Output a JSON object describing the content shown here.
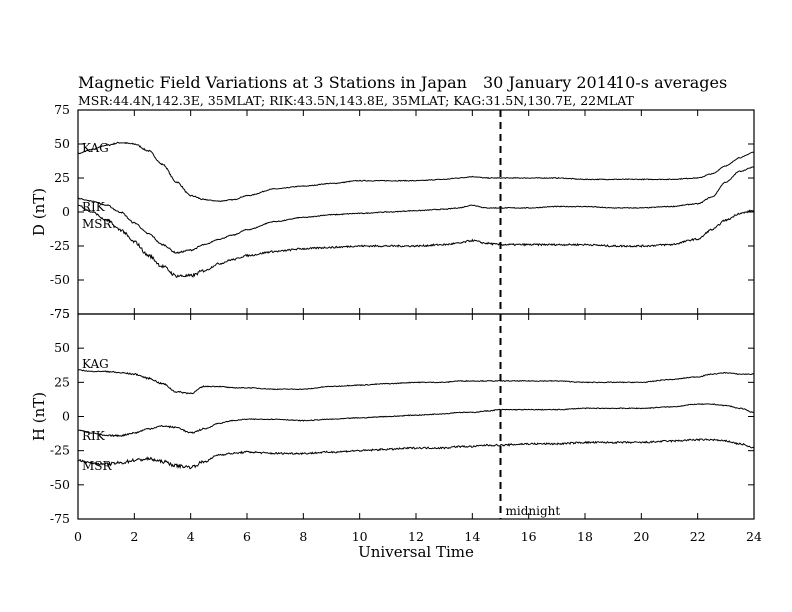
{
  "header": {
    "title": "Magnetic Field Variations at 3 Stations in Japan",
    "date": "30 January 2014",
    "averaging": "10-s averages",
    "stations": "MSR:44.4N,142.3E, 35MLAT;  RIK:43.5N,143.8E, 35MLAT;  KAG:31.5N,130.7E, 22MLAT"
  },
  "chart_data": {
    "type": "line",
    "xlabel": "Universal Time",
    "xlim": [
      0,
      24
    ],
    "xticks": [
      0,
      2,
      4,
      6,
      8,
      10,
      12,
      14,
      16,
      18,
      20,
      22,
      24
    ],
    "annotation": {
      "x": 15,
      "label": "midnight",
      "style": "dashed"
    },
    "panels": [
      {
        "id": "D",
        "ylabel": "D (nT)",
        "ylim": [
          -75,
          75
        ],
        "yticks": [
          75,
          50,
          25,
          0,
          -25,
          -50,
          -75
        ],
        "series": [
          {
            "name": "KAG",
            "x": [
              0,
              0.5,
              1,
              1.5,
              2,
              2.5,
              3,
              3.5,
              4,
              4.5,
              5,
              5.5,
              6,
              7,
              8,
              9,
              10,
              11,
              12,
              13,
              13.5,
              14,
              14.5,
              15,
              16,
              17,
              18,
              19,
              20,
              21,
              22,
              22.5,
              23,
              23.5,
              24
            ],
            "y": [
              43,
              46,
              49,
              51,
              50,
              45,
              35,
              22,
              12,
              9,
              8,
              9,
              12,
              17,
              19,
              21,
              23,
              23,
              23,
              24,
              25,
              26,
              25,
              25,
              25,
              25,
              24,
              24,
              24,
              24,
              25,
              28,
              34,
              40,
              44
            ]
          },
          {
            "name": "RIK",
            "x": [
              0,
              0.5,
              1,
              1.5,
              2,
              2.5,
              3,
              3.5,
              4,
              4.5,
              5,
              5.5,
              6,
              7,
              8,
              9,
              10,
              11,
              12,
              13,
              13.5,
              14,
              14.5,
              15,
              16,
              17,
              18,
              19,
              20,
              21,
              22,
              22.5,
              23,
              23.5,
              24
            ],
            "y": [
              10,
              8,
              5,
              0,
              -8,
              -16,
              -24,
              -30,
              -28,
              -24,
              -20,
              -17,
              -13,
              -7,
              -4,
              -2,
              -1,
              0,
              1,
              2,
              3,
              5,
              3,
              3,
              3,
              4,
              4,
              3,
              3,
              4,
              6,
              11,
              22,
              30,
              33
            ]
          },
          {
            "name": "MSR",
            "x": [
              0,
              0.5,
              1,
              1.5,
              2,
              2.5,
              3,
              3.5,
              4,
              4.5,
              5,
              5.5,
              6,
              7,
              8,
              9,
              10,
              11,
              12,
              13,
              13.5,
              14,
              14.5,
              15,
              16,
              17,
              18,
              19,
              20,
              21,
              22,
              22.5,
              23,
              23.5,
              24
            ],
            "y": [
              5,
              0,
              -6,
              -13,
              -22,
              -32,
              -40,
              -47,
              -47,
              -43,
              -38,
              -35,
              -32,
              -29,
              -27,
              -26,
              -25,
              -25,
              -25,
              -24,
              -23,
              -21,
              -23,
              -24,
              -24,
              -24,
              -24,
              -25,
              -25,
              -24,
              -20,
              -13,
              -6,
              -1,
              1
            ]
          }
        ]
      },
      {
        "id": "H",
        "ylabel": "H (nT)",
        "ylim": [
          -75,
          75
        ],
        "yticks": [
          75,
          50,
          25,
          0,
          -25,
          -50,
          -75
        ],
        "series": [
          {
            "name": "KAG",
            "x": [
              0,
              0.5,
              1,
              1.5,
              2,
              2.5,
              3,
              3.5,
              4,
              4.5,
              5,
              5.5,
              6,
              7,
              8,
              9,
              10,
              11,
              12,
              13,
              13.5,
              14,
              14.5,
              15,
              16,
              17,
              18,
              19,
              20,
              21,
              22,
              22.5,
              23,
              23.5,
              24
            ],
            "y": [
              34,
              33,
              33,
              32,
              31,
              28,
              24,
              18,
              17,
              22,
              22,
              21,
              21,
              20,
              20,
              22,
              23,
              24,
              25,
              25,
              26,
              26,
              26,
              26,
              26,
              26,
              25,
              25,
              25,
              27,
              29,
              31,
              32,
              31,
              31
            ]
          },
          {
            "name": "RIK",
            "x": [
              0,
              0.5,
              1,
              1.5,
              2,
              2.5,
              3,
              3.5,
              4,
              4.5,
              5,
              5.5,
              6,
              7,
              8,
              9,
              10,
              11,
              12,
              13,
              13.5,
              14,
              14.5,
              15,
              16,
              17,
              18,
              19,
              20,
              21,
              22,
              22.5,
              23,
              23.5,
              24
            ],
            "y": [
              -10,
              -12,
              -14,
              -14,
              -12,
              -9,
              -7,
              -8,
              -12,
              -9,
              -5,
              -3,
              -2,
              -2,
              -3,
              -2,
              -1,
              0,
              1,
              2,
              3,
              3,
              4,
              5,
              5,
              5,
              6,
              6,
              6,
              7,
              9,
              9,
              8,
              6,
              3
            ]
          },
          {
            "name": "MSR",
            "x": [
              0,
              0.5,
              1,
              1.5,
              2,
              2.5,
              3,
              3.5,
              4,
              4.5,
              5,
              5.5,
              6,
              7,
              8,
              9,
              10,
              11,
              12,
              13,
              13.5,
              14,
              14.5,
              15,
              16,
              17,
              18,
              19,
              20,
              21,
              22,
              22.5,
              23,
              23.5,
              24
            ],
            "y": [
              -32,
              -34,
              -35,
              -34,
              -32,
              -31,
              -33,
              -36,
              -37,
              -33,
              -28,
              -27,
              -26,
              -27,
              -27,
              -26,
              -25,
              -24,
              -23,
              -23,
              -22,
              -22,
              -21,
              -21,
              -20,
              -20,
              -19,
              -19,
              -19,
              -18,
              -17,
              -17,
              -18,
              -20,
              -23
            ]
          }
        ]
      }
    ]
  }
}
